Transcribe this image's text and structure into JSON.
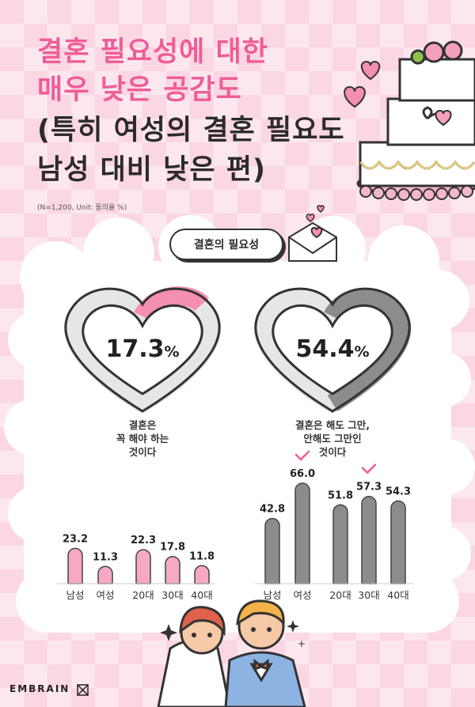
{
  "title": {
    "line1": "결혼 필요성에 대한",
    "line2": "매우 낮은 공감도",
    "line3": "(특히 여성의 결혼 필요도",
    "line4": "남성 대비 낮은 편)"
  },
  "note": "(N=1,200, Unit: 동의율 %)",
  "badge_label": "결혼의 필요성",
  "brand": "EMBRAIN",
  "colors": {
    "pink": "#ee5d96",
    "pink_bar": "#f7a8c4",
    "gray_bar": "#8c8c8c",
    "ring_bg": "#e6e6e6"
  },
  "chart_data": [
    {
      "type": "pie",
      "name": "must-marry",
      "value": 17.3,
      "unit": "%",
      "label": "17.3",
      "caption_lines": [
        "결혼은",
        "꼭 해야 하는",
        "것이다"
      ]
    },
    {
      "type": "pie",
      "name": "either-way",
      "value": 54.4,
      "unit": "%",
      "label": "54.4",
      "caption_lines": [
        "결혼은 해도 그만,",
        "안해도 그만인",
        "것이다"
      ]
    },
    {
      "type": "bar",
      "name": "must-marry-breakdown",
      "categories": [
        "남성",
        "여성",
        "20대",
        "30대",
        "40대"
      ],
      "values": [
        23.2,
        11.3,
        22.3,
        17.8,
        11.8
      ],
      "ylim": [
        0,
        70
      ]
    },
    {
      "type": "bar",
      "name": "either-way-breakdown",
      "categories": [
        "남성",
        "여성",
        "20대",
        "30대",
        "40대"
      ],
      "values": [
        42.8,
        66.0,
        51.8,
        57.3,
        54.3
      ],
      "value_labels": [
        "42.8",
        "66.0",
        "51.8",
        "57.3",
        "54.3"
      ],
      "highlighted": [
        false,
        true,
        false,
        true,
        false
      ],
      "ylim": [
        0,
        70
      ]
    }
  ]
}
